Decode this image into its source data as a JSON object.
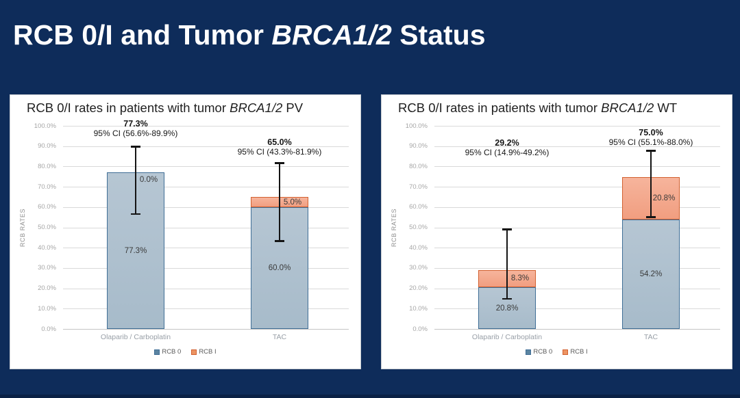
{
  "slide": {
    "title": {
      "prefix": "RCB 0/I and Tumor ",
      "italic": "BRCA1/2",
      "suffix": " Status"
    },
    "background_color": "#0e2c5a",
    "title_color": "#ffffff"
  },
  "chart_data": [
    {
      "type": "bar",
      "stacked": true,
      "title_prefix": "RCB 0/I rates in patients with tumor ",
      "title_italic": "BRCA1/2",
      "title_suffix": " PV",
      "ylabel": "RCB RATES",
      "ylim": [
        0,
        100
      ],
      "ytick_labels": [
        "0.0%",
        "10.0%",
        "20.0%",
        "30.0%",
        "40.0%",
        "50.0%",
        "60.0%",
        "70.0%",
        "80.0%",
        "90.0%",
        "100.0%"
      ],
      "grid": true,
      "legend_position": "bottom",
      "categories": [
        "Olaparib / Carboplatin",
        "TAC"
      ],
      "series": [
        {
          "name": "RCB 0",
          "values": [
            77.3,
            60.0
          ],
          "data_labels": [
            "77.3%",
            "60.0%"
          ]
        },
        {
          "name": "RCB I",
          "values": [
            0.0,
            5.0
          ],
          "data_labels": [
            "0.0%",
            "5.0%"
          ]
        }
      ],
      "totals": [
        {
          "value": 77.3,
          "label": "77.3%",
          "ci_label": "95% CI (56.6%-89.9%)",
          "ci_low": 56.6,
          "ci_high": 89.9
        },
        {
          "value": 65.0,
          "label": "65.0%",
          "ci_label": "95% CI (43.3%-81.9%)",
          "ci_low": 43.3,
          "ci_high": 81.9
        }
      ],
      "legend": [
        "RCB 0",
        "RCB I"
      ]
    },
    {
      "type": "bar",
      "stacked": true,
      "title_prefix": "RCB 0/I rates in patients with tumor ",
      "title_italic": "BRCA1/2",
      "title_suffix": " WT",
      "ylabel": "RCB RATES",
      "ylim": [
        0,
        100
      ],
      "ytick_labels": [
        "0.0%",
        "10.0%",
        "20.0%",
        "30.0%",
        "40.0%",
        "50.0%",
        "60.0%",
        "70.0%",
        "80.0%",
        "90.0%",
        "100.0%"
      ],
      "grid": true,
      "legend_position": "bottom",
      "categories": [
        "Olaparib / Carboplatin",
        "TAC"
      ],
      "series": [
        {
          "name": "RCB 0",
          "values": [
            20.8,
            54.2
          ],
          "data_labels": [
            "20.8%",
            "54.2%"
          ]
        },
        {
          "name": "RCB I",
          "values": [
            8.3,
            20.8
          ],
          "data_labels": [
            "8.3%",
            "20.8%"
          ]
        }
      ],
      "totals": [
        {
          "value": 29.2,
          "label": "29.2%",
          "ci_label": "95% CI (14.9%-49.2%)",
          "ci_low": 14.9,
          "ci_high": 49.2
        },
        {
          "value": 75.0,
          "label": "75.0%",
          "ci_label": "95% CI (55.1%-88.0%)",
          "ci_low": 55.1,
          "ci_high": 88.0
        }
      ],
      "legend": [
        "RCB 0",
        "RCB I"
      ]
    }
  ],
  "colors": {
    "slide_bg": "#0e2c5a",
    "panel_bg": "#ffffff",
    "panel_border": "#c9cdd2",
    "rcb0_fill": "#a7bbca",
    "rcb0_fill_top": "#b6c6d3",
    "rcb0_border": "#3f6e96",
    "rcb0_legend": "#5b84a1",
    "rcb1_fill": "#f19e80",
    "rcb1_fill_top": "#f6b49c",
    "rcb1_border": "#d2602f",
    "rcb1_legend": "#ec9463",
    "gridline": "#d9d9d9",
    "axis_text": "#a6a6a6",
    "category_text": "#979ea6",
    "error_bar": "#141414"
  }
}
